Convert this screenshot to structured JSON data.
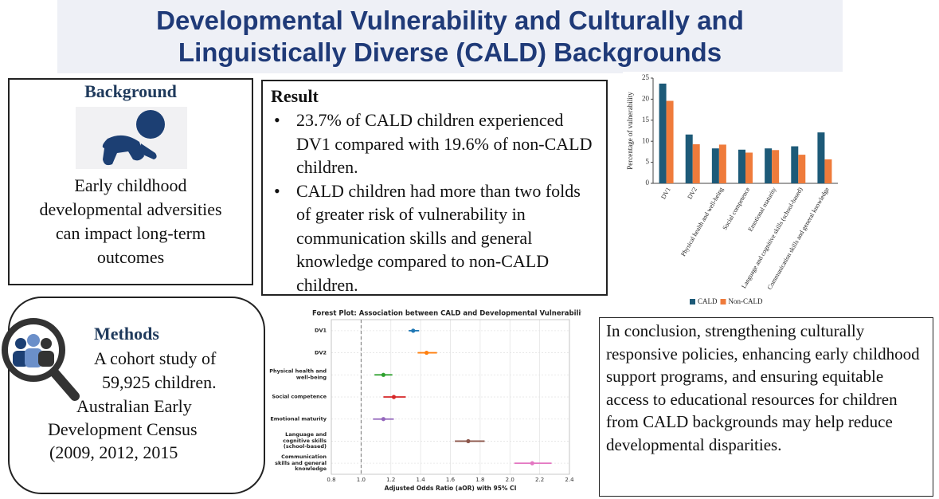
{
  "header": {
    "title": "Developmental Vulnerability and Culturally and Linguistically Diverse (CALD) Backgrounds"
  },
  "background": {
    "title": "Background",
    "lines": [
      "Early childhood",
      "developmental adversities",
      "can impact long-term",
      "outcomes"
    ]
  },
  "result": {
    "title": "Result",
    "bullets": [
      "23.7% of CALD children experienced DV1 compared with 19.6% of non-CALD children.",
      "CALD children had more than two folds of greater risk of vulnerability in communication skills and general knowledge compared to non-CALD children."
    ]
  },
  "methods": {
    "title": "Methods",
    "lines": [
      "A cohort study of",
      "59,925 children.",
      "Australian Early",
      "Development Census",
      "(2009, 2012, 2015"
    ]
  },
  "conclusion": {
    "text": "In conclusion, strengthening culturally responsive policies, enhancing early childhood support programs, and ensuring equitable access to educational resources for children from CALD backgrounds may help reduce developmental disparities."
  },
  "chart_data": [
    {
      "type": "bar",
      "y_label": "Percentage of vulnerability",
      "categories": [
        "DV1",
        "DV2",
        "Physical health and well-being",
        "Social competence",
        "Emotional maturity",
        "Language and cognitive skills (school-based)",
        "Communication skills and general knowledge"
      ],
      "series": [
        {
          "name": "CALD",
          "color": "#1d5a78",
          "values": [
            23.7,
            11.6,
            8.3,
            8.0,
            8.3,
            8.8,
            12.1
          ]
        },
        {
          "name": "Non-CALD",
          "color": "#ef7b3b",
          "values": [
            19.6,
            9.3,
            9.2,
            7.3,
            7.9,
            6.8,
            5.7
          ]
        }
      ],
      "ylim": [
        0,
        25
      ],
      "yticks": [
        0,
        5,
        10,
        15,
        20,
        25
      ],
      "legend": "bottom"
    },
    {
      "type": "forest",
      "title": "Forest Plot: Association between CALD and Developmental Vulnerability",
      "x_label": "Adjusted Odds Ratio (aOR) with 95% CI",
      "categories": [
        "DV1",
        "DV2",
        "Physical health and well-being",
        "Social competence",
        "Emotional maturity",
        "Language and cognitive skills (school-based)",
        "Communication skills and general knowledge"
      ],
      "values": [
        1.35,
        1.44,
        1.15,
        1.22,
        1.15,
        1.72,
        2.15
      ],
      "lower": [
        1.32,
        1.38,
        1.09,
        1.15,
        1.08,
        1.63,
        2.03
      ],
      "upper": [
        1.39,
        1.51,
        1.21,
        1.3,
        1.22,
        1.83,
        2.28
      ],
      "colors": [
        "#1f77b4",
        "#ff7f0e",
        "#2ca02c",
        "#d62728",
        "#9467bd",
        "#8c564b",
        "#e377c2"
      ],
      "xlim": [
        0.8,
        2.4
      ],
      "xticks": [
        0.8,
        {
          "value": 1,
          "label": "1.0"
        },
        1.2,
        1.4,
        1.6,
        1.8,
        {
          "value": 2,
          "label": "2.0"
        },
        2.2,
        2.4
      ],
      "reference_line": 1,
      "grid": true
    }
  ]
}
